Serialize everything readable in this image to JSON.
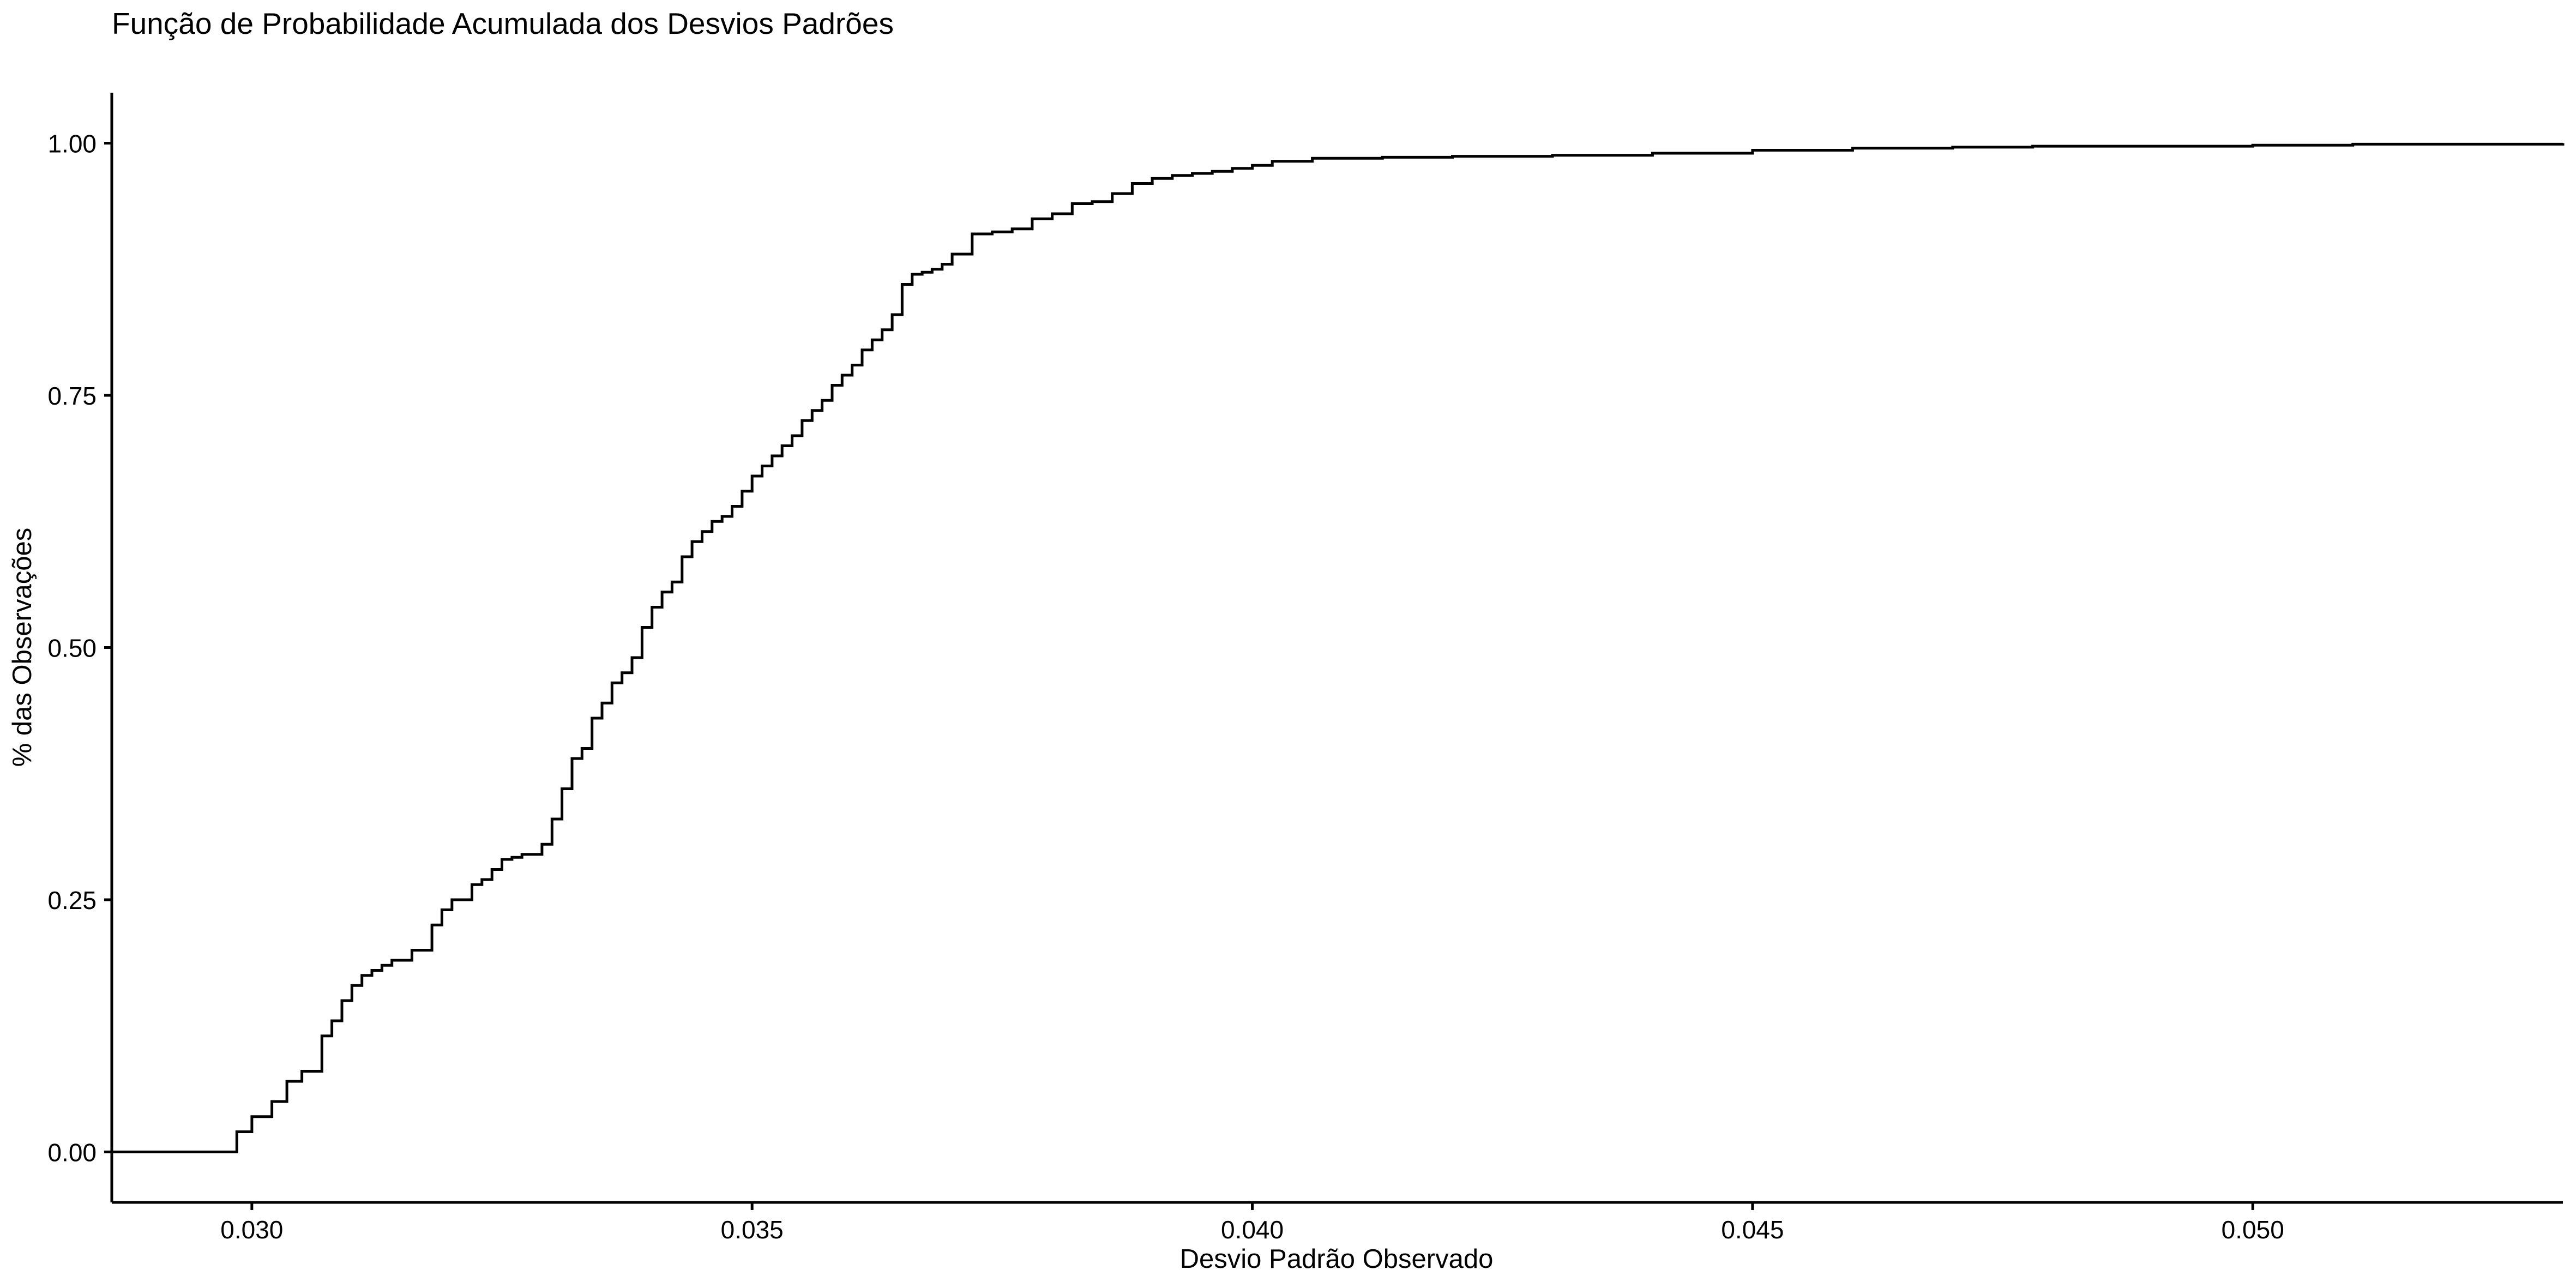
{
  "chart_data": {
    "type": "line",
    "title": "Função de Probabilidade Acumulada dos Desvios Padrões",
    "xlabel": "Desvio Padrão Observado",
    "ylabel": "% das Observações",
    "xlim": [
      0.0286,
      0.0531
    ],
    "ylim": [
      -0.05,
      1.05
    ],
    "grid": false,
    "legend": "none",
    "line_color": "#000000",
    "x_ticks": [
      {
        "value": 0.03,
        "label": "0.030"
      },
      {
        "value": 0.035,
        "label": "0.035"
      },
      {
        "value": 0.04,
        "label": "0.040"
      },
      {
        "value": 0.045,
        "label": "0.045"
      },
      {
        "value": 0.05,
        "label": "0.050"
      }
    ],
    "y_ticks": [
      {
        "value": 0.0,
        "label": "0.00"
      },
      {
        "value": 0.25,
        "label": "0.25"
      },
      {
        "value": 0.5,
        "label": "0.50"
      },
      {
        "value": 0.75,
        "label": "0.75"
      },
      {
        "value": 1.0,
        "label": "1.00"
      }
    ],
    "series": [
      {
        "x": [
          0.0286,
          0.0298,
          0.02985,
          0.03,
          0.0302,
          0.03035,
          0.0305,
          0.0307,
          0.0308,
          0.0309,
          0.031,
          0.0311,
          0.0312,
          0.0313,
          0.0314,
          0.0316,
          0.0318,
          0.0319,
          0.032,
          0.0322,
          0.0323,
          0.0324,
          0.0325,
          0.0326,
          0.0327,
          0.0329,
          0.033,
          0.0331,
          0.0332,
          0.0333,
          0.0334,
          0.0335,
          0.0336,
          0.0337,
          0.0338,
          0.0339,
          0.034,
          0.0341,
          0.0342,
          0.0343,
          0.0344,
          0.0345,
          0.0346,
          0.0347,
          0.0348,
          0.0349,
          0.035,
          0.0351,
          0.0352,
          0.0353,
          0.0354,
          0.0355,
          0.0356,
          0.0357,
          0.0358,
          0.0359,
          0.036,
          0.0361,
          0.0362,
          0.0363,
          0.0364,
          0.0365,
          0.0366,
          0.0367,
          0.0368,
          0.0369,
          0.037,
          0.0372,
          0.0374,
          0.0376,
          0.0378,
          0.038,
          0.0382,
          0.0384,
          0.0386,
          0.0388,
          0.039,
          0.0392,
          0.0394,
          0.0396,
          0.0398,
          0.04,
          0.0402,
          0.0406,
          0.041,
          0.0413,
          0.042,
          0.043,
          0.044,
          0.045,
          0.046,
          0.047,
          0.0478,
          0.049,
          0.05,
          0.051,
          0.052,
          0.0531
        ],
        "y": [
          0.0,
          0.0,
          0.02,
          0.035,
          0.05,
          0.07,
          0.08,
          0.115,
          0.13,
          0.15,
          0.165,
          0.175,
          0.18,
          0.185,
          0.19,
          0.2,
          0.225,
          0.24,
          0.25,
          0.265,
          0.27,
          0.28,
          0.29,
          0.292,
          0.295,
          0.305,
          0.33,
          0.36,
          0.39,
          0.4,
          0.43,
          0.445,
          0.465,
          0.475,
          0.49,
          0.52,
          0.54,
          0.555,
          0.565,
          0.59,
          0.605,
          0.615,
          0.625,
          0.63,
          0.64,
          0.655,
          0.67,
          0.68,
          0.69,
          0.7,
          0.71,
          0.725,
          0.735,
          0.745,
          0.76,
          0.77,
          0.78,
          0.795,
          0.805,
          0.815,
          0.83,
          0.86,
          0.87,
          0.872,
          0.875,
          0.88,
          0.89,
          0.91,
          0.912,
          0.915,
          0.925,
          0.93,
          0.94,
          0.942,
          0.95,
          0.96,
          0.965,
          0.968,
          0.97,
          0.972,
          0.975,
          0.978,
          0.982,
          0.985,
          0.985,
          0.986,
          0.987,
          0.988,
          0.99,
          0.993,
          0.995,
          0.996,
          0.997,
          0.997,
          0.998,
          0.999,
          0.999,
          1.0
        ]
      }
    ]
  }
}
